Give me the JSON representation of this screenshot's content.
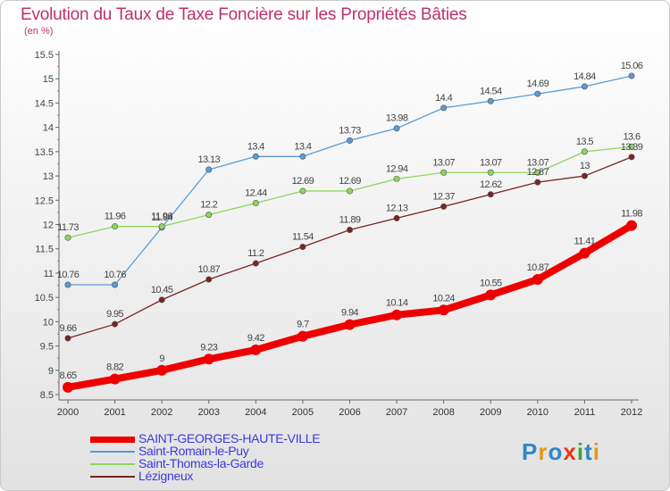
{
  "title": "Evolution du Taux de Taxe Foncière sur les Propriétés Bâties",
  "unit_label": "(en %)",
  "logo": {
    "text": "Proxiti",
    "letter_colors": [
      "#2f86c9",
      "#e09a1a",
      "#2f86c9",
      "#e03a1a",
      "#3aa53a",
      "#2f86c9",
      "#e09a1a"
    ]
  },
  "chart_data": {
    "type": "line",
    "title": "Evolution du Taux de Taxe Foncière sur les Propriétés Bâties",
    "ylabel": "(en %)",
    "x": [
      "2000",
      "2001",
      "2002",
      "2003",
      "2004",
      "2005",
      "2006",
      "2007",
      "2008",
      "2009",
      "2010",
      "2011",
      "2012"
    ],
    "ylim": [
      8.5,
      15.5
    ],
    "yticks": [
      "8.5",
      "9",
      "9.5",
      "10",
      "10.5",
      "11",
      "11.5",
      "12",
      "12.5",
      "13",
      "13.5",
      "14",
      "14.5",
      "15",
      "15.5"
    ],
    "grid": false,
    "legend_position": "bottom-left",
    "series": [
      {
        "name": "SAINT-GEORGES-HAUTE-VILLE",
        "color": "#ee0000",
        "width": 8,
        "marker": 6,
        "values": [
          8.65,
          8.82,
          9,
          9.23,
          9.42,
          9.7,
          9.94,
          10.14,
          10.24,
          10.55,
          10.87,
          11.41,
          11.98
        ],
        "labels": [
          "8.65",
          "8.82",
          "9",
          "9.23",
          "9.42",
          "9.7",
          "9.94",
          "10.14",
          "10.24",
          "10.55",
          "10.87",
          "11.41",
          "11.98"
        ]
      },
      {
        "name": "Saint-Romain-le-Puy",
        "color": "#5a9bd5",
        "width": 1.3,
        "marker": 3.2,
        "values": [
          10.76,
          10.76,
          11.94,
          13.13,
          13.4,
          13.4,
          13.73,
          13.98,
          14.4,
          14.54,
          14.69,
          14.84,
          15.06
        ],
        "labels": [
          "10.76",
          "10.76",
          "11.94",
          "13.13",
          "13.4",
          "13.4",
          "13.73",
          "13.98",
          "14.4",
          "14.54",
          "14.69",
          "14.84",
          "15.06"
        ]
      },
      {
        "name": "Saint-Thomas-la-Garde",
        "color": "#8ed65a",
        "width": 1.3,
        "marker": 3.2,
        "values": [
          11.73,
          11.96,
          11.96,
          12.2,
          12.44,
          12.69,
          12.69,
          12.94,
          13.07,
          13.07,
          13.07,
          13.5,
          13.6
        ],
        "labels": [
          "11.73",
          "11.96",
          "11.96",
          "12.2",
          "12.44",
          "12.69",
          "12.69",
          "12.94",
          "13.07",
          "13.07",
          "13.07",
          "13.5",
          "13.6"
        ]
      },
      {
        "name": "Lézigneux",
        "color": "#7a2424",
        "width": 1.3,
        "marker": 3.2,
        "values": [
          9.66,
          9.95,
          10.45,
          10.87,
          11.2,
          11.54,
          11.89,
          12.13,
          12.37,
          12.62,
          12.87,
          13,
          13.39
        ],
        "labels": [
          "9.66",
          "9.95",
          "10.45",
          "10.87",
          "11.2",
          "11.54",
          "11.89",
          "12.13",
          "12.37",
          "12.62",
          "12.87",
          "13",
          "13.39"
        ]
      }
    ]
  }
}
